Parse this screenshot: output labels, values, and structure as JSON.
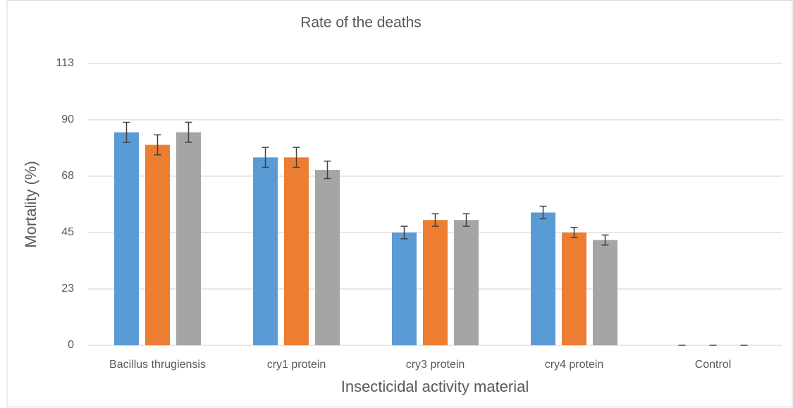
{
  "chart_data": {
    "type": "bar",
    "title": "Rate of the deaths",
    "x_label": "Insecticidal activity material",
    "y_label": "Mortality (%)",
    "categories": [
      "Bacillus thrugiensis",
      "cry1 protein",
      "cry3 protein",
      "cry4 protein",
      "Control"
    ],
    "series": [
      {
        "color": "#5b9bd5",
        "values": [
          85,
          75,
          45,
          53,
          0
        ],
        "errors": [
          4,
          4,
          2.5,
          2.5,
          0
        ]
      },
      {
        "color": "#ed7d31",
        "values": [
          80,
          75,
          50,
          45,
          0
        ],
        "errors": [
          4,
          4,
          2.5,
          2,
          0
        ]
      },
      {
        "color": "#a5a5a5",
        "values": [
          85,
          70,
          50,
          42,
          0
        ],
        "errors": [
          4,
          3.5,
          2.5,
          2,
          0
        ]
      }
    ],
    "ylim": [
      0,
      112.5
    ],
    "yticks": [
      0,
      {
        "value": 22.5,
        "label": "23"
      },
      45,
      {
        "value": 67.5,
        "label": "68"
      },
      90,
      {
        "value": 112.5,
        "label": "113"
      }
    ],
    "grid": true
  }
}
